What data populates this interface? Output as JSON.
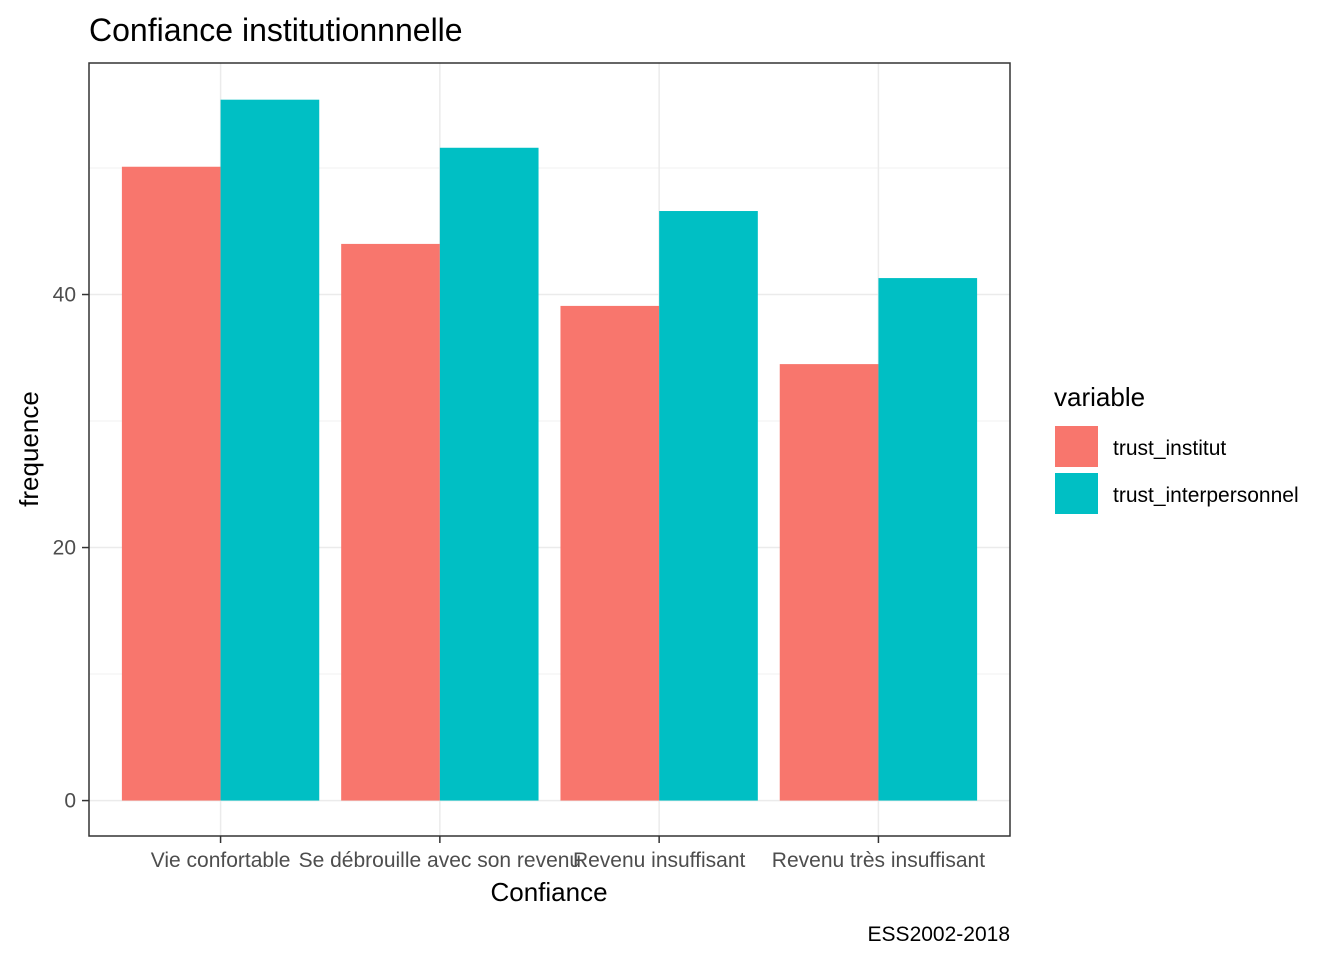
{
  "chart_data": {
    "type": "bar",
    "title": "Confiance institutionnnelle",
    "xlabel": "Confiance",
    "ylabel": "frequence",
    "caption": "ESS2002-2018",
    "categories": [
      "Vie confortable",
      "Se débrouille avec son revenu",
      "Revenu insuffisant",
      "Revenu très insuffisant"
    ],
    "series": [
      {
        "name": "trust_institut",
        "color": "#F8766D",
        "values": [
          50.1,
          44.0,
          39.1,
          34.5
        ]
      },
      {
        "name": "trust_interpersonnel",
        "color": "#00BFC4",
        "values": [
          55.4,
          51.6,
          46.6,
          41.3
        ]
      }
    ],
    "ylim": [
      -2.8,
      58.3
    ],
    "yticks": [
      0,
      20,
      40
    ],
    "grid": true,
    "legend": {
      "title": "variable",
      "position": "right"
    }
  }
}
